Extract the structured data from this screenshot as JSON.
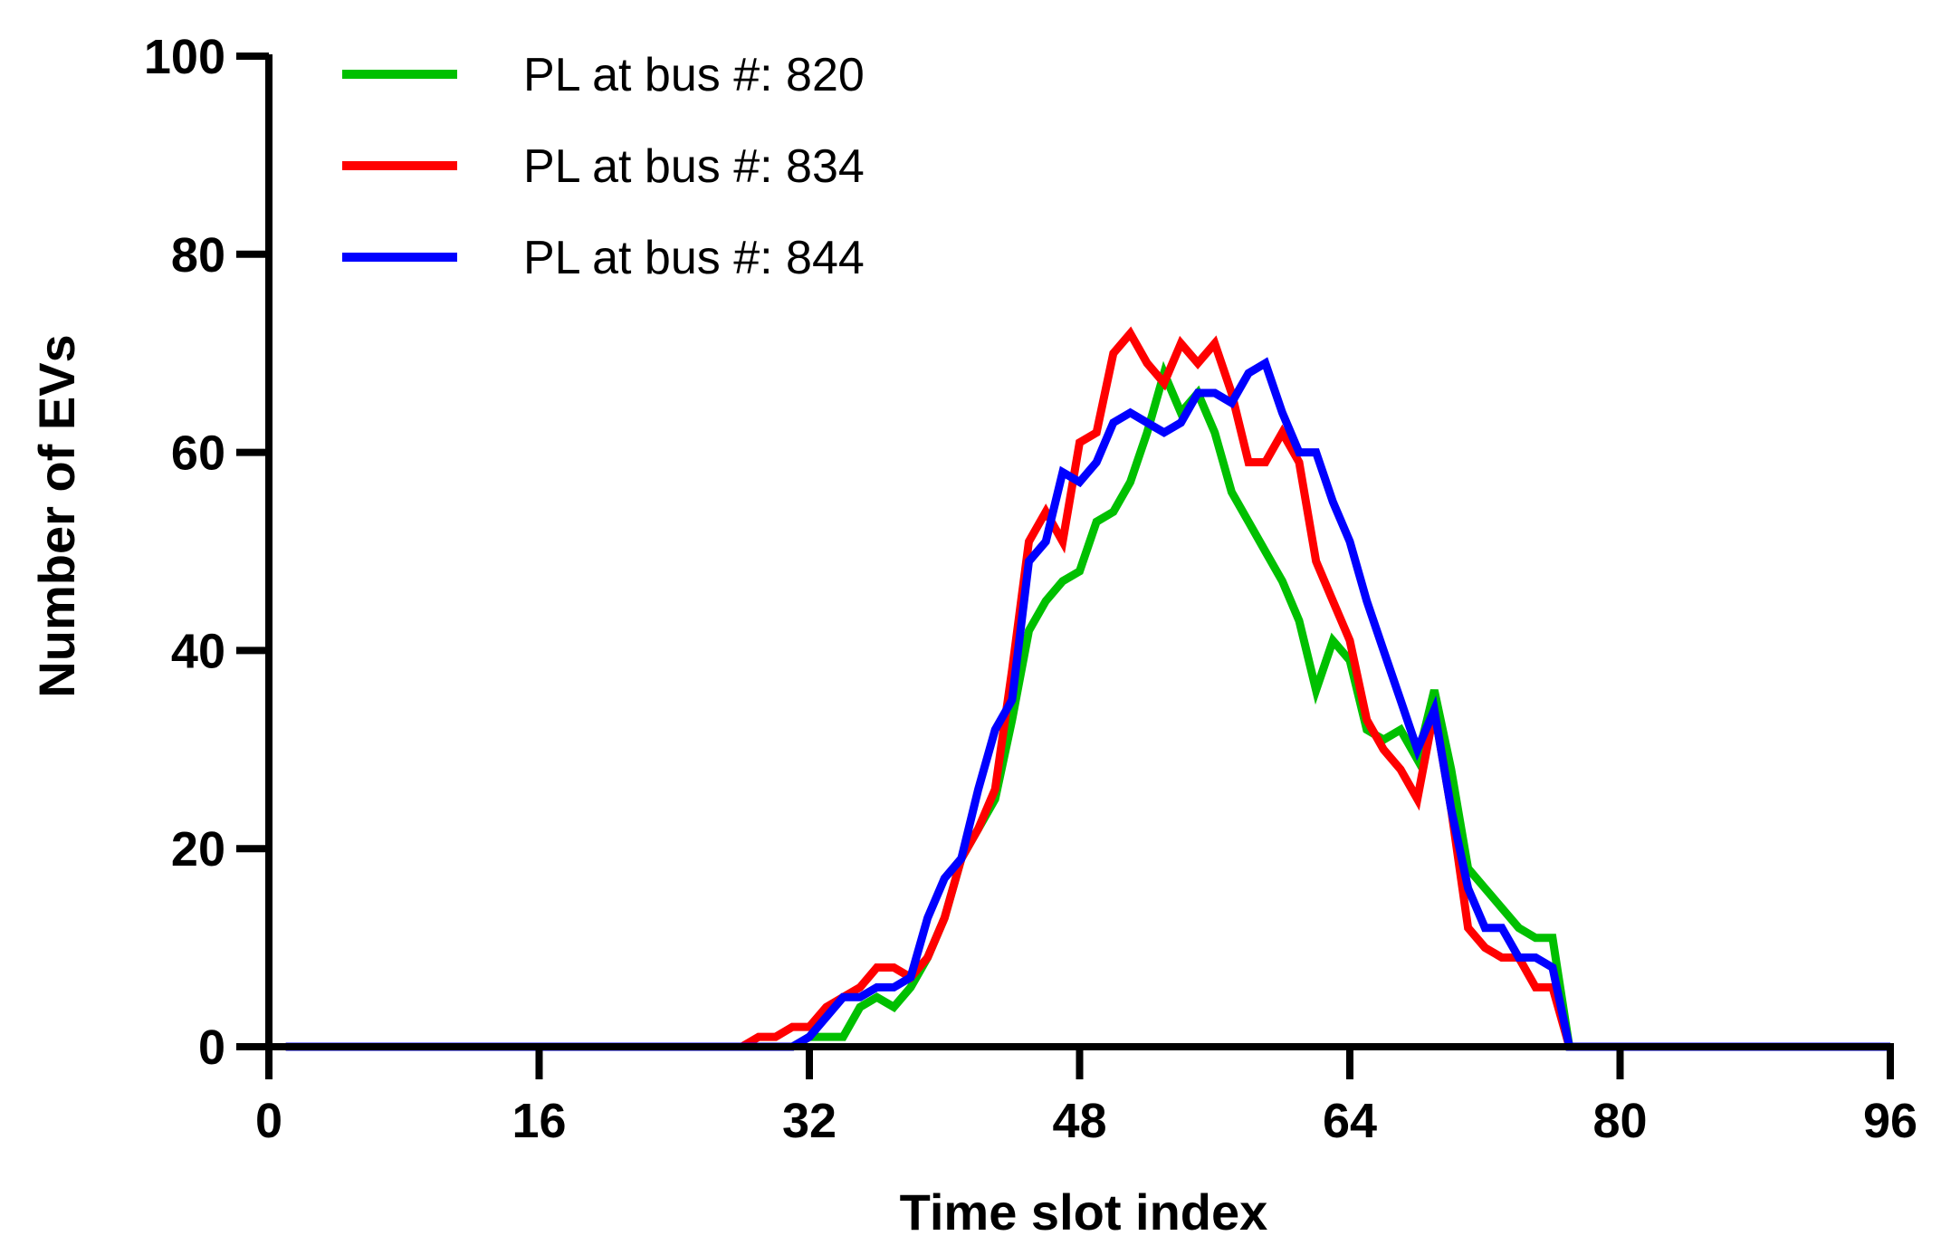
{
  "chart_data": {
    "type": "line",
    "title": "",
    "xlabel": "Time slot index",
    "ylabel": "Number of EVs",
    "xlim": [
      0,
      96
    ],
    "ylim": [
      0,
      100
    ],
    "xticks": [
      0,
      16,
      32,
      48,
      64,
      80,
      96
    ],
    "yticks": [
      0,
      20,
      40,
      60,
      80,
      100
    ],
    "grid": false,
    "legend_position": "top-left",
    "x": [
      1,
      2,
      3,
      4,
      5,
      6,
      7,
      8,
      9,
      10,
      11,
      12,
      13,
      14,
      15,
      16,
      17,
      18,
      19,
      20,
      21,
      22,
      23,
      24,
      25,
      26,
      27,
      28,
      29,
      30,
      31,
      32,
      33,
      34,
      35,
      36,
      37,
      38,
      39,
      40,
      41,
      42,
      43,
      44,
      45,
      46,
      47,
      48,
      49,
      50,
      51,
      52,
      53,
      54,
      55,
      56,
      57,
      58,
      59,
      60,
      61,
      62,
      63,
      64,
      65,
      66,
      67,
      68,
      69,
      70,
      71,
      72,
      73,
      74,
      75,
      76,
      77,
      78,
      79,
      80,
      81,
      82,
      83,
      84,
      85,
      86,
      87,
      88,
      89,
      90,
      91,
      92,
      93,
      94,
      95,
      96
    ],
    "series": [
      {
        "name": "PL at bus #: 820",
        "color": "#00c000",
        "values": [
          0,
          0,
          0,
          0,
          0,
          0,
          0,
          0,
          0,
          0,
          0,
          0,
          0,
          0,
          0,
          0,
          0,
          0,
          0,
          0,
          0,
          0,
          0,
          0,
          0,
          0,
          0,
          0,
          0,
          0,
          0,
          1,
          1,
          1,
          4,
          5,
          4,
          6,
          9,
          13,
          19,
          22,
          25,
          33,
          42,
          45,
          47,
          48,
          53,
          54,
          57,
          62,
          68,
          64,
          66,
          62,
          56,
          53,
          50,
          47,
          43,
          36,
          41,
          39,
          32,
          31,
          32,
          29,
          36,
          28,
          18,
          16,
          14,
          12,
          11,
          11,
          0,
          0,
          0,
          0,
          0,
          0,
          0,
          0,
          0,
          0,
          0,
          0,
          0,
          0,
          0,
          0,
          0,
          0,
          0,
          0
        ]
      },
      {
        "name": "PL at bus #: 834",
        "color": "#ff0000",
        "values": [
          0,
          0,
          0,
          0,
          0,
          0,
          0,
          0,
          0,
          0,
          0,
          0,
          0,
          0,
          0,
          0,
          0,
          0,
          0,
          0,
          0,
          0,
          0,
          0,
          0,
          0,
          0,
          0,
          1,
          1,
          2,
          2,
          4,
          5,
          6,
          8,
          8,
          7,
          9,
          13,
          19,
          22,
          26,
          38,
          51,
          54,
          51,
          61,
          62,
          70,
          72,
          69,
          67,
          71,
          69,
          71,
          66,
          59,
          59,
          62,
          59,
          49,
          45,
          41,
          33,
          30,
          28,
          25,
          34,
          24,
          12,
          10,
          9,
          9,
          6,
          6,
          0,
          0,
          0,
          0,
          0,
          0,
          0,
          0,
          0,
          0,
          0,
          0,
          0,
          0,
          0,
          0,
          0,
          0,
          0,
          0
        ]
      },
      {
        "name": "PL at bus #: 844",
        "color": "#0000ff",
        "values": [
          0,
          0,
          0,
          0,
          0,
          0,
          0,
          0,
          0,
          0,
          0,
          0,
          0,
          0,
          0,
          0,
          0,
          0,
          0,
          0,
          0,
          0,
          0,
          0,
          0,
          0,
          0,
          0,
          0,
          0,
          0,
          1,
          3,
          5,
          5,
          6,
          6,
          7,
          13,
          17,
          19,
          26,
          32,
          35,
          49,
          51,
          58,
          57,
          59,
          63,
          64,
          63,
          62,
          63,
          66,
          66,
          65,
          68,
          69,
          64,
          60,
          60,
          55,
          51,
          45,
          40,
          35,
          30,
          34,
          24,
          16,
          12,
          12,
          9,
          9,
          8,
          0,
          0,
          0,
          0,
          0,
          0,
          0,
          0,
          0,
          0,
          0,
          0,
          0,
          0,
          0,
          0,
          0,
          0,
          0,
          0
        ]
      }
    ]
  }
}
